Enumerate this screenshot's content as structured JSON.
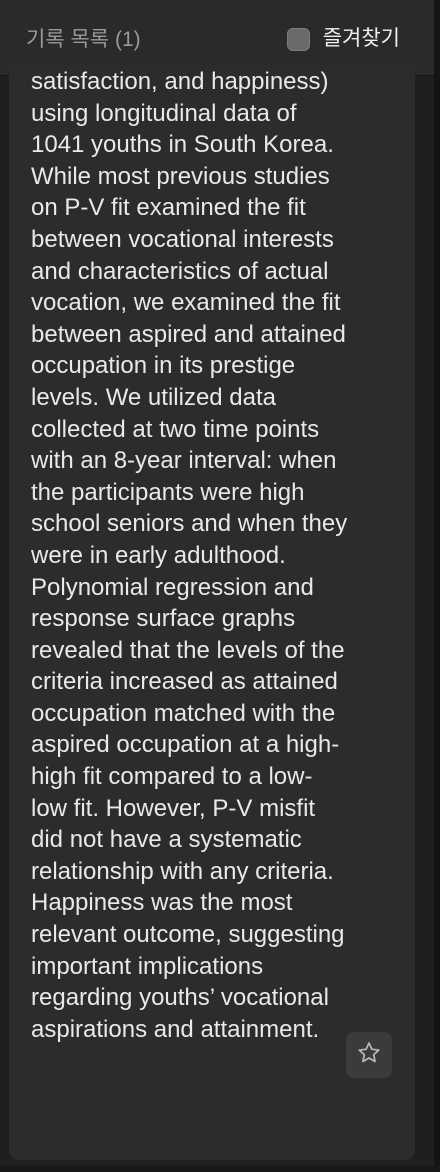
{
  "header": {
    "title": "기록 목록 (1)",
    "favorites_label": "즐겨찾기",
    "favorites_checked": false
  },
  "abstract": {
    "text": "satisfaction, and happiness)\nusing longitudinal data of\n1041 youths in South Korea.\nWhile most previous studies\non P-V fit examined the fit\nbetween vocational interests\nand characteristics of actual\nvocation, we examined the fit\nbetween aspired and attained\noccupation in its prestige\nlevels. We utilized data\ncollected at two time points\nwith an 8-year interval: when\nthe participants were high\nschool seniors and when they\nwere in early adulthood.\nPolynomial regression and\nresponse surface graphs\nrevealed that the levels of the\ncriteria increased as attained\noccupation matched with the\naspired occupation at a high-\nhigh fit compared to a low-\nlow fit. However, P-V misfit\ndid not have a systematic\nrelationship with any criteria.\nHappiness was the most\nrelevant outcome, suggesting\nimportant implications\nregarding youths’ vocational\naspirations and attainment."
  },
  "actions": {
    "star_icon": "star-outline-icon"
  },
  "colors": {
    "background": "#1f1f1f",
    "header": "#2a2a2a",
    "card": "#2c2c2c",
    "text": "#e9e9e9",
    "muted_text": "#9a9a9a"
  }
}
